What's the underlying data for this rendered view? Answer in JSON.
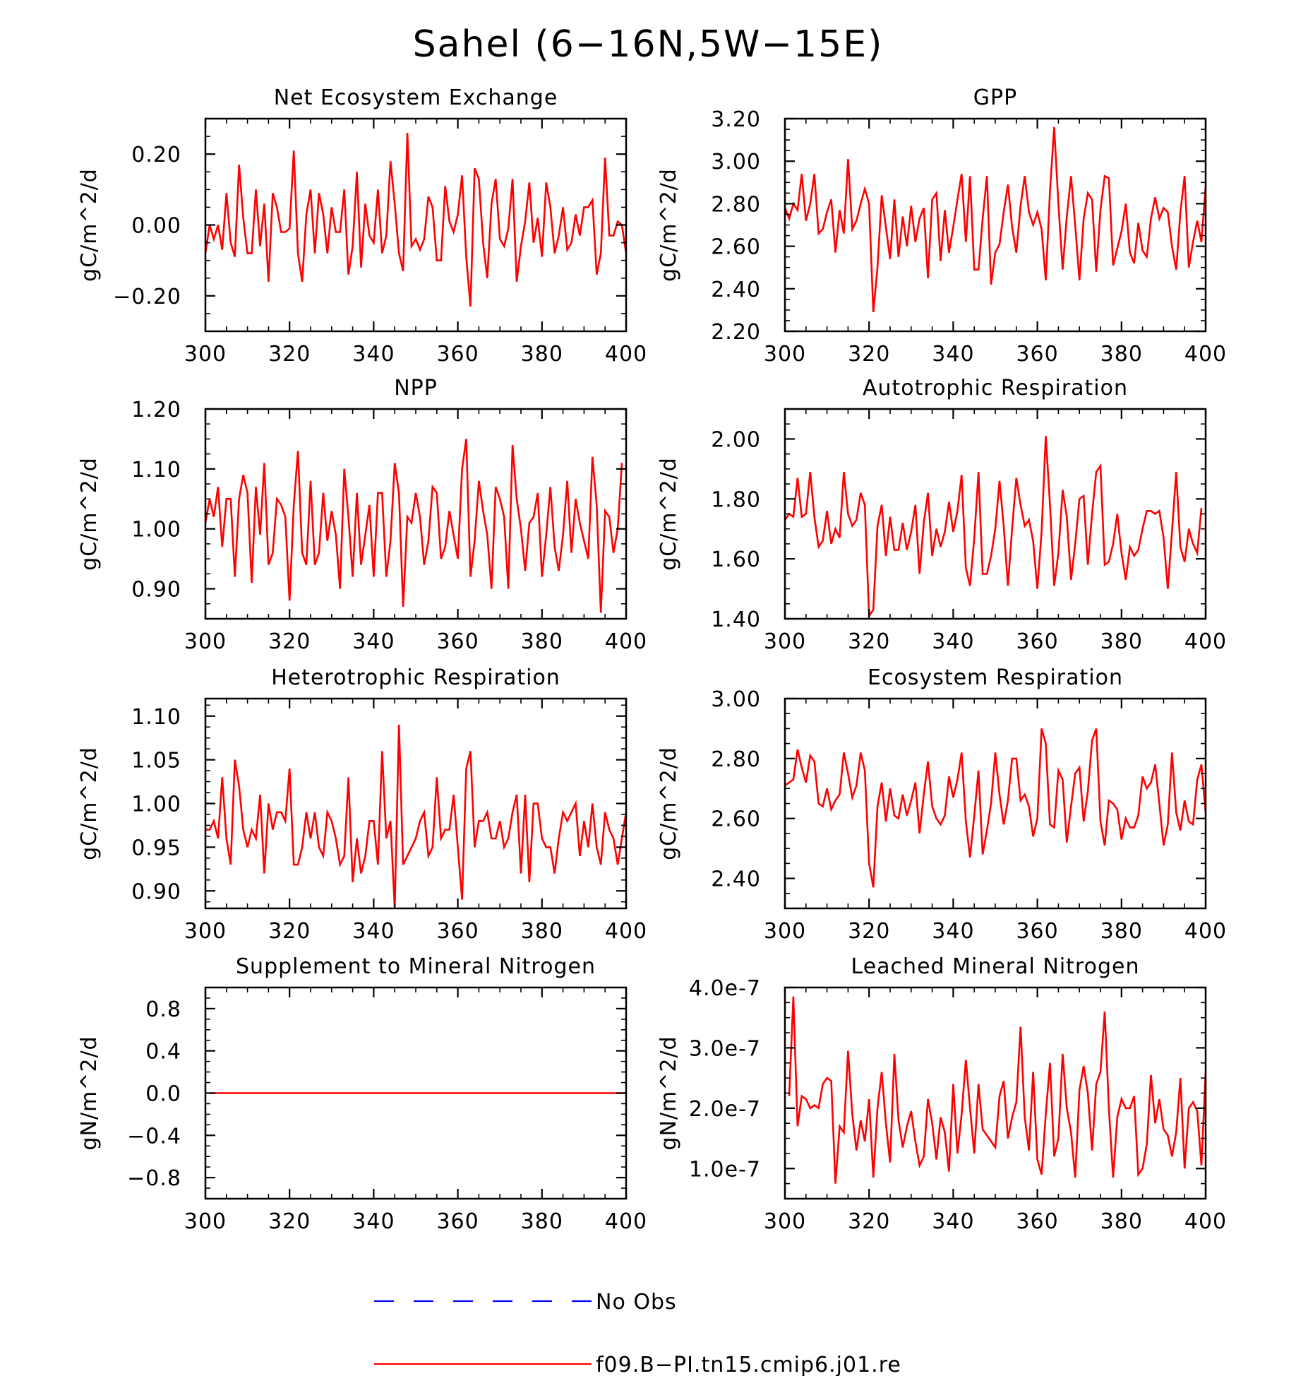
{
  "title": "Sahel (6-16N,5W-15E)",
  "legend": [
    {
      "name": "No Obs",
      "color": "#0000ff",
      "dash": true
    },
    {
      "name": "f09.B-PI.tn15.cmip6.j01.re",
      "color": "#ff0000",
      "dash": false
    }
  ],
  "chart_data": [
    {
      "type": "line",
      "title": "Net Ecosystem Exchange",
      "ylabel": "gC/m^2/d",
      "xlim": [
        300,
        400
      ],
      "ylim": [
        -0.3,
        0.3
      ],
      "xticks": [
        300,
        320,
        340,
        360,
        380,
        400
      ],
      "yticks": [
        -0.2,
        0.0,
        0.2
      ],
      "ytick_labels": [
        "-0.20",
        "0.00",
        "0.20"
      ],
      "series": [
        {
          "name": "f09.B-PI.tn15.cmip6.j01.re",
          "color": "#ff0000",
          "x_start": 300,
          "x_step": 1,
          "values": [
            -0.08,
            0.0,
            -0.04,
            0.0,
            -0.07,
            0.09,
            -0.05,
            -0.09,
            0.17,
            0.02,
            -0.08,
            -0.08,
            0.1,
            -0.06,
            0.06,
            -0.16,
            0.09,
            0.05,
            -0.02,
            -0.02,
            -0.01,
            0.21,
            -0.08,
            -0.16,
            0.03,
            0.1,
            -0.08,
            0.09,
            0.03,
            -0.08,
            0.05,
            -0.02,
            -0.02,
            0.1,
            -0.14,
            -0.06,
            0.15,
            -0.12,
            0.06,
            -0.03,
            -0.05,
            0.1,
            -0.08,
            -0.03,
            0.18,
            0.06,
            -0.08,
            -0.13,
            0.26,
            -0.06,
            -0.04,
            -0.07,
            -0.04,
            0.08,
            0.05,
            -0.1,
            -0.1,
            0.11,
            0.01,
            -0.02,
            0.03,
            0.14,
            -0.09,
            -0.23,
            0.16,
            0.13,
            -0.05,
            -0.15,
            0.06,
            0.13,
            -0.04,
            -0.06,
            -0.01,
            0.13,
            -0.16,
            -0.06,
            0.01,
            0.12,
            -0.05,
            0.02,
            -0.09,
            0.12,
            0.05,
            -0.08,
            -0.03,
            0.05,
            -0.07,
            -0.05,
            0.03,
            -0.03,
            0.05,
            0.05,
            0.07,
            -0.14,
            -0.08,
            0.19,
            -0.03,
            -0.03,
            0.01,
            0.0,
            -0.08
          ]
        }
      ]
    },
    {
      "type": "line",
      "title": "GPP",
      "ylabel": "gC/m^2/d",
      "xlim": [
        300,
        400
      ],
      "ylim": [
        2.2,
        3.2
      ],
      "xticks": [
        300,
        320,
        340,
        360,
        380,
        400
      ],
      "yticks": [
        2.2,
        2.4,
        2.6,
        2.8,
        3.0,
        3.2
      ],
      "ytick_labels": [
        "2.20",
        "2.40",
        "2.60",
        "2.80",
        "3.00",
        "3.20"
      ],
      "series": [
        {
          "name": "f09.B-PI.tn15.cmip6.j01.re",
          "color": "#ff0000",
          "x_start": 300,
          "x_step": 1,
          "values": [
            2.78,
            2.73,
            2.8,
            2.77,
            2.94,
            2.72,
            2.8,
            2.94,
            2.66,
            2.68,
            2.76,
            2.82,
            2.57,
            2.77,
            2.66,
            3.01,
            2.68,
            2.72,
            2.8,
            2.87,
            2.8,
            2.29,
            2.5,
            2.84,
            2.69,
            2.54,
            2.82,
            2.55,
            2.74,
            2.6,
            2.79,
            2.62,
            2.73,
            2.78,
            2.45,
            2.82,
            2.85,
            2.53,
            2.77,
            2.57,
            2.69,
            2.82,
            2.94,
            2.62,
            2.93,
            2.49,
            2.49,
            2.73,
            2.93,
            2.42,
            2.57,
            2.61,
            2.76,
            2.89,
            2.69,
            2.57,
            2.79,
            2.93,
            2.76,
            2.7,
            2.76,
            2.68,
            2.44,
            2.86,
            3.16,
            2.8,
            2.49,
            2.74,
            2.93,
            2.7,
            2.44,
            2.73,
            2.85,
            2.82,
            2.48,
            2.77,
            2.93,
            2.92,
            2.51,
            2.59,
            2.67,
            2.8,
            2.57,
            2.52,
            2.71,
            2.58,
            2.55,
            2.73,
            2.83,
            2.73,
            2.78,
            2.76,
            2.6,
            2.49,
            2.76,
            2.93,
            2.5,
            2.62,
            2.72,
            2.62,
            2.88
          ]
        }
      ]
    },
    {
      "type": "line",
      "title": "NPP",
      "ylabel": "gC/m^2/d",
      "xlim": [
        300,
        400
      ],
      "ylim": [
        0.85,
        1.2
      ],
      "xticks": [
        300,
        320,
        340,
        360,
        380,
        400
      ],
      "yticks": [
        0.9,
        1.0,
        1.1,
        1.2
      ],
      "ytick_labels": [
        "0.90",
        "1.00",
        "1.10",
        "1.20"
      ],
      "series": [
        {
          "name": "f09.B-PI.tn15.cmip6.j01.re",
          "color": "#ff0000",
          "x_start": 300,
          "x_step": 1,
          "values": [
            1.01,
            1.05,
            1.02,
            1.07,
            0.97,
            1.05,
            1.05,
            0.92,
            1.05,
            1.09,
            1.06,
            0.91,
            1.07,
            0.99,
            1.11,
            0.94,
            0.96,
            1.05,
            1.04,
            1.02,
            0.88,
            1.04,
            1.13,
            0.96,
            0.94,
            1.08,
            0.94,
            0.96,
            1.06,
            0.98,
            1.03,
            0.99,
            0.9,
            1.1,
            1.02,
            0.92,
            1.06,
            0.94,
            0.99,
            1.04,
            0.92,
            1.06,
            1.06,
            0.92,
            0.98,
            1.11,
            1.06,
            0.87,
            1.02,
            1.01,
            1.06,
            1.02,
            0.94,
            0.98,
            1.07,
            1.06,
            0.95,
            0.97,
            1.03,
            0.99,
            0.95,
            1.1,
            1.15,
            0.92,
            0.98,
            1.08,
            1.03,
            0.99,
            0.9,
            1.07,
            1.05,
            1.02,
            0.9,
            1.14,
            1.05,
            1.0,
            0.93,
            1.01,
            1.02,
            1.06,
            0.92,
            0.99,
            1.07,
            0.97,
            0.93,
            0.99,
            1.08,
            0.96,
            1.05,
            1.01,
            0.98,
            0.95,
            1.12,
            1.04,
            0.86,
            1.03,
            1.02,
            0.96,
            1.0,
            1.11
          ]
        }
      ]
    },
    {
      "type": "line",
      "title": "Autotrophic Respiration",
      "ylabel": "gC/m^2/d",
      "xlim": [
        300,
        400
      ],
      "ylim": [
        1.4,
        2.1
      ],
      "xticks": [
        300,
        320,
        340,
        360,
        380,
        400
      ],
      "yticks": [
        1.4,
        1.6,
        1.8,
        2.0
      ],
      "ytick_labels": [
        "1.40",
        "1.60",
        "1.80",
        "2.00"
      ],
      "series": [
        {
          "name": "f09.B-PI.tn15.cmip6.j01.re",
          "color": "#ff0000",
          "x_start": 300,
          "x_step": 1,
          "values": [
            1.73,
            1.75,
            1.74,
            1.87,
            1.74,
            1.75,
            1.89,
            1.74,
            1.64,
            1.66,
            1.76,
            1.65,
            1.7,
            1.67,
            1.89,
            1.75,
            1.71,
            1.73,
            1.82,
            1.78,
            1.41,
            1.43,
            1.71,
            1.78,
            1.61,
            1.74,
            1.63,
            1.63,
            1.72,
            1.63,
            1.69,
            1.78,
            1.55,
            1.72,
            1.82,
            1.61,
            1.7,
            1.64,
            1.69,
            1.79,
            1.69,
            1.76,
            1.88,
            1.57,
            1.51,
            1.67,
            1.89,
            1.55,
            1.55,
            1.61,
            1.7,
            1.86,
            1.71,
            1.51,
            1.7,
            1.87,
            1.78,
            1.71,
            1.73,
            1.66,
            1.5,
            1.69,
            2.01,
            1.78,
            1.51,
            1.62,
            1.83,
            1.74,
            1.53,
            1.65,
            1.8,
            1.81,
            1.58,
            1.75,
            1.89,
            1.91,
            1.58,
            1.59,
            1.65,
            1.75,
            1.62,
            1.53,
            1.64,
            1.61,
            1.63,
            1.7,
            1.76,
            1.76,
            1.75,
            1.76,
            1.67,
            1.5,
            1.69,
            1.89,
            1.64,
            1.59,
            1.7,
            1.65,
            1.62,
            1.77
          ]
        }
      ]
    },
    {
      "type": "line",
      "title": "Heterotrophic Respiration",
      "ylabel": "gC/m^2/d",
      "xlim": [
        300,
        400
      ],
      "ylim": [
        0.88,
        1.12
      ],
      "xticks": [
        300,
        320,
        340,
        360,
        380,
        400
      ],
      "yticks": [
        0.9,
        0.95,
        1.0,
        1.05,
        1.1
      ],
      "ytick_labels": [
        "0.90",
        "0.95",
        "1.00",
        "1.05",
        "1.10"
      ],
      "series": [
        {
          "name": "f09.B-PI.tn15.cmip6.j01.re",
          "color": "#ff0000",
          "x_start": 300,
          "x_step": 1,
          "values": [
            0.97,
            0.97,
            0.98,
            0.96,
            1.03,
            0.96,
            0.93,
            1.05,
            1.02,
            0.97,
            0.95,
            0.97,
            0.96,
            1.01,
            0.92,
            1.0,
            0.97,
            0.99,
            0.99,
            0.98,
            1.04,
            0.93,
            0.93,
            0.95,
            0.99,
            0.96,
            0.99,
            0.95,
            0.94,
            0.99,
            0.98,
            0.96,
            0.93,
            0.94,
            1.03,
            0.91,
            0.96,
            0.92,
            0.94,
            0.98,
            0.98,
            0.93,
            1.06,
            0.96,
            0.98,
            0.88,
            1.09,
            0.93,
            0.94,
            0.95,
            0.96,
            0.98,
            0.99,
            0.94,
            0.95,
            1.03,
            0.96,
            0.97,
            0.97,
            1.01,
            0.95,
            0.89,
            1.04,
            1.06,
            0.95,
            0.98,
            0.98,
            0.99,
            0.96,
            0.96,
            0.98,
            0.95,
            0.96,
            0.99,
            1.01,
            0.92,
            1.01,
            0.91,
            1.0,
            1.0,
            0.96,
            0.95,
            0.95,
            0.92,
            0.96,
            0.99,
            0.98,
            0.99,
            1.0,
            0.94,
            0.98,
            0.95,
            1.0,
            0.95,
            0.93,
            0.99,
            0.97,
            0.96,
            0.93,
            0.96,
            0.99
          ]
        }
      ]
    },
    {
      "type": "line",
      "title": "Ecosystem Respiration",
      "ylabel": "gC/m^2/d",
      "xlim": [
        300,
        400
      ],
      "ylim": [
        2.3,
        3.0
      ],
      "xticks": [
        300,
        320,
        340,
        360,
        380,
        400
      ],
      "yticks": [
        2.4,
        2.6,
        2.8,
        3.0
      ],
      "ytick_labels": [
        "2.40",
        "2.60",
        "2.80",
        "3.00"
      ],
      "series": [
        {
          "name": "f09.B-PI.tn15.cmip6.j01.re",
          "color": "#ff0000",
          "x_start": 300,
          "x_step": 1,
          "values": [
            2.71,
            2.72,
            2.73,
            2.83,
            2.77,
            2.72,
            2.81,
            2.79,
            2.65,
            2.64,
            2.7,
            2.63,
            2.66,
            2.68,
            2.82,
            2.75,
            2.67,
            2.71,
            2.82,
            2.76,
            2.45,
            2.37,
            2.64,
            2.72,
            2.59,
            2.7,
            2.61,
            2.6,
            2.68,
            2.61,
            2.66,
            2.72,
            2.55,
            2.68,
            2.79,
            2.64,
            2.6,
            2.58,
            2.61,
            2.74,
            2.67,
            2.73,
            2.82,
            2.59,
            2.47,
            2.61,
            2.76,
            2.48,
            2.56,
            2.65,
            2.82,
            2.68,
            2.58,
            2.66,
            2.8,
            2.8,
            2.66,
            2.68,
            2.64,
            2.54,
            2.6,
            2.9,
            2.85,
            2.58,
            2.57,
            2.76,
            2.73,
            2.52,
            2.64,
            2.75,
            2.77,
            2.59,
            2.69,
            2.86,
            2.9,
            2.59,
            2.51,
            2.66,
            2.65,
            2.63,
            2.53,
            2.6,
            2.57,
            2.57,
            2.61,
            2.74,
            2.7,
            2.72,
            2.78,
            2.65,
            2.51,
            2.58,
            2.82,
            2.62,
            2.56,
            2.66,
            2.59,
            2.58,
            2.73,
            2.78,
            2.62
          ]
        }
      ]
    },
    {
      "type": "line",
      "title": "Supplement to Mineral Nitrogen",
      "ylabel": "gN/m^2/d",
      "xlim": [
        300,
        400
      ],
      "ylim": [
        -1.0,
        1.0
      ],
      "xticks": [
        300,
        320,
        340,
        360,
        380,
        400
      ],
      "yticks": [
        -0.8,
        -0.4,
        0.0,
        0.4,
        0.8
      ],
      "ytick_labels": [
        "-0.8",
        "-0.4",
        "0.0",
        "0.4",
        "0.8"
      ],
      "series": [
        {
          "name": "f09.B-PI.tn15.cmip6.j01.re",
          "color": "#ff0000",
          "x_start": 301,
          "x_step": 99,
          "values": [
            0.0,
            0.0
          ]
        }
      ]
    },
    {
      "type": "line",
      "title": "Leached Mineral Nitrogen",
      "ylabel": "gN/m^2/d",
      "xlim": [
        300,
        400
      ],
      "ylim": [
        5e-08,
        4e-07
      ],
      "xticks": [
        300,
        320,
        340,
        360,
        380,
        400
      ],
      "yticks": [
        1e-07,
        2e-07,
        3e-07,
        4e-07
      ],
      "ytick_labels": [
        "1.0e-7",
        "2.0e-7",
        "3.0e-7",
        "4.0e-7"
      ],
      "series": [
        {
          "name": "f09.B-PI.tn15.cmip6.j01.re",
          "color": "#ff0000",
          "x_start": 301,
          "x_step": 1,
          "values": [
            2.2e-07,
            3.85e-07,
            1.7e-07,
            2.2e-07,
            2.15e-07,
            2e-07,
            2.05e-07,
            2e-07,
            2.4e-07,
            2.5e-07,
            2.45e-07,
            7.5e-08,
            1.7e-07,
            1.6e-07,
            2.95e-07,
            1.9e-07,
            1.3e-07,
            1.8e-07,
            1.45e-07,
            2.15e-07,
            8.5e-08,
            2e-07,
            2.6e-07,
            1.75e-07,
            1.1e-07,
            2.9e-07,
            1.8e-07,
            1.35e-07,
            1.7e-07,
            1.95e-07,
            1.45e-07,
            1.05e-07,
            1.2e-07,
            2.15e-07,
            1.75e-07,
            1.15e-07,
            1.85e-07,
            1.6e-07,
            9.5e-08,
            2.4e-07,
            1.25e-07,
            1.9e-07,
            2.8e-07,
            2e-07,
            1.25e-07,
            2.4e-07,
            1.65e-07,
            1.55e-07,
            1.45e-07,
            1.35e-07,
            2.2e-07,
            2.45e-07,
            1.5e-07,
            1.85e-07,
            2.1e-07,
            3.35e-07,
            1.85e-07,
            1.3e-07,
            2.6e-07,
            1.15e-07,
            9e-08,
            1.9e-07,
            2.75e-07,
            1.2e-07,
            1.5e-07,
            2.9e-07,
            2e-07,
            1.6e-07,
            8.5e-08,
            2.3e-07,
            2.7e-07,
            2.25e-07,
            1.3e-07,
            2.4e-07,
            2.6e-07,
            3.6e-07,
            2e-07,
            8.5e-08,
            1.85e-07,
            2.15e-07,
            2e-07,
            2e-07,
            2.2e-07,
            9e-08,
            1e-07,
            1.4e-07,
            2.55e-07,
            1.75e-07,
            2.15e-07,
            1.65e-07,
            1.55e-07,
            1.2e-07,
            1.6e-07,
            2.5e-07,
            1e-07,
            2e-07,
            2.1e-07,
            1.95e-07,
            1.05e-07,
            2.6e-07
          ]
        }
      ]
    }
  ]
}
